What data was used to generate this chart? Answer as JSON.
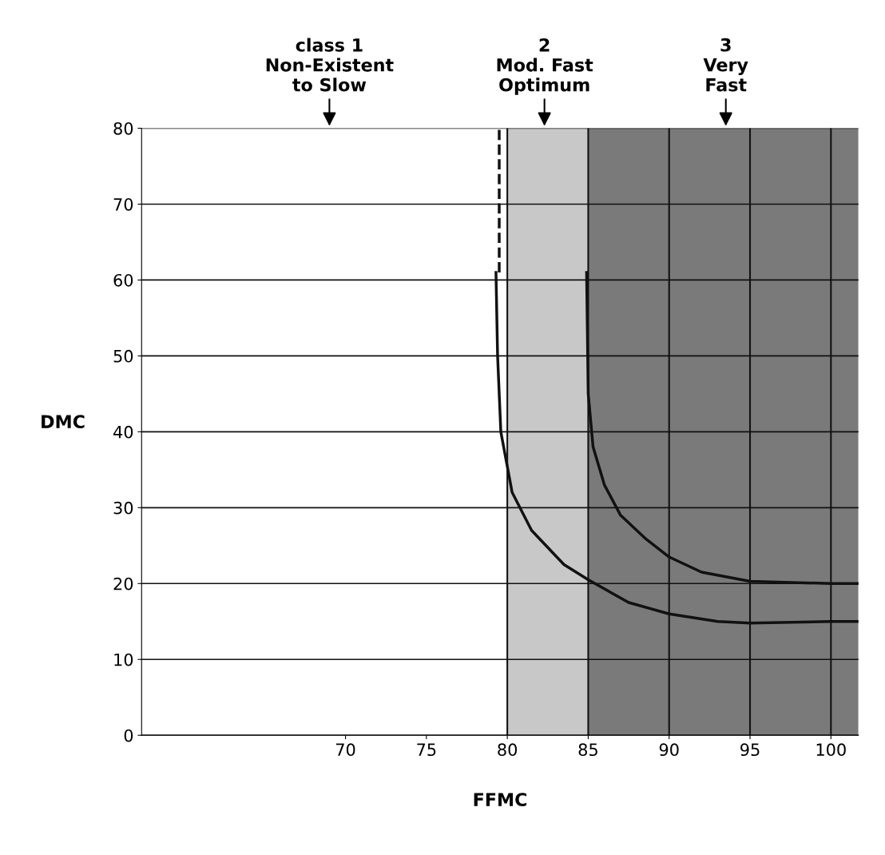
{
  "chart_data": {
    "type": "line",
    "xlabel": "FFMC",
    "ylabel": "DMC",
    "xlim": [
      57.4,
      101.7
    ],
    "ylim": [
      0,
      80
    ],
    "xticks": [
      70,
      75,
      80,
      85,
      90,
      95,
      100
    ],
    "yticks": [
      0,
      10,
      20,
      30,
      40,
      50,
      60,
      70,
      80
    ],
    "grid": "y",
    "marker": "none",
    "series": [
      {
        "color": "#111111",
        "line_style": "solid",
        "x": [
          79.3,
          79.4,
          79.6,
          80.3,
          81.5,
          83.5,
          85,
          87.5,
          90,
          93,
          95,
          100,
          101.7
        ],
        "values": [
          61,
          50,
          40,
          32,
          27,
          22.5,
          20.5,
          17.5,
          16,
          15,
          14.8,
          15,
          15
        ]
      },
      {
        "color": "#111111",
        "line_style": "solid",
        "x": [
          84.9,
          85,
          85.3,
          86,
          87,
          88.5,
          90,
          92,
          95,
          100,
          101.7
        ],
        "values": [
          61,
          45,
          38,
          33,
          29,
          26,
          23.5,
          21.5,
          20.3,
          20,
          20
        ]
      },
      {
        "color": "#111111",
        "line_style": "dashed",
        "x": [
          79.5,
          79.5
        ],
        "values": [
          61,
          80
        ]
      }
    ],
    "ref_lines": [
      {
        "axis": "x",
        "value": 80,
        "color": "#111111"
      },
      {
        "axis": "x",
        "value": 85,
        "color": "#111111"
      },
      {
        "axis": "x",
        "value": 90,
        "color": "#111111"
      },
      {
        "axis": "x",
        "value": 95,
        "color": "#111111"
      },
      {
        "axis": "x",
        "value": 100,
        "color": "#111111"
      }
    ],
    "bands": [
      {
        "axis": "x",
        "from": 80,
        "to": 85,
        "color": "#c8c8c8"
      },
      {
        "axis": "x",
        "from": 85,
        "to": 101.7,
        "color": "#7a7a7a"
      }
    ],
    "annotations": [
      "class 1\nNon-Existent\nto Slow",
      "2\nMod. Fast\nOptimum",
      "3\nVery\nFast"
    ]
  }
}
